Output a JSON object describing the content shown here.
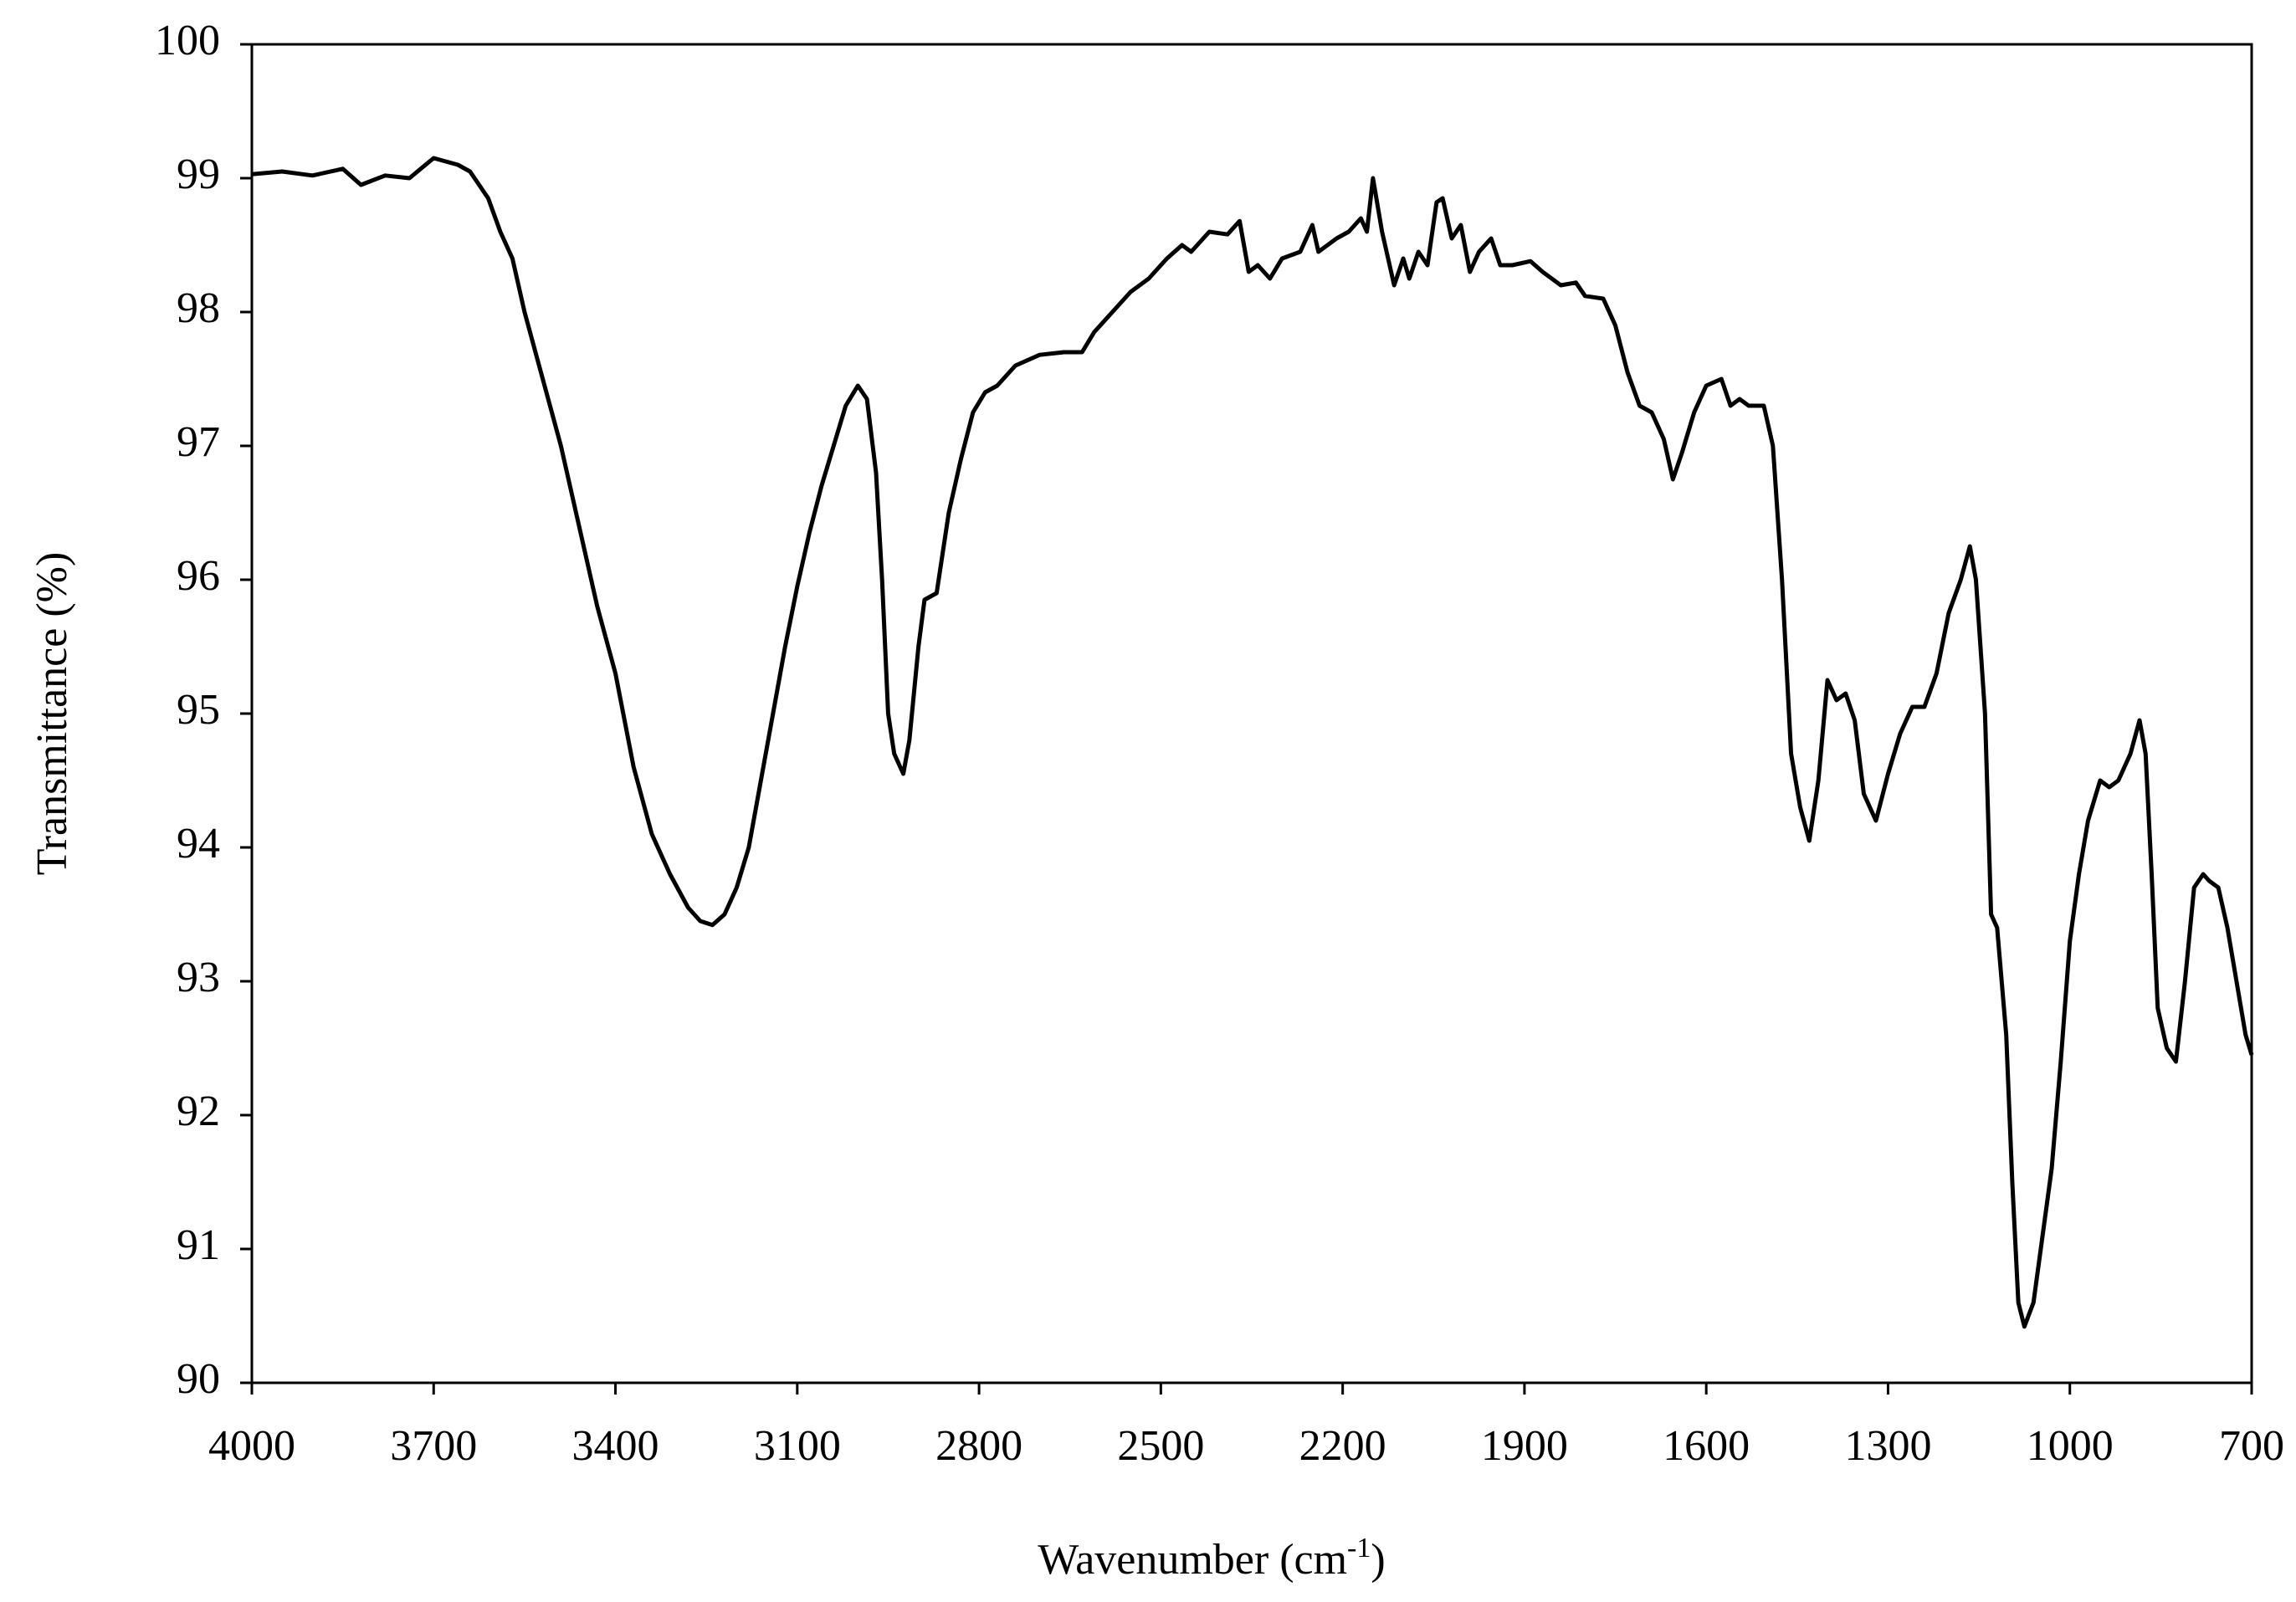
{
  "chart_data": {
    "type": "line",
    "ylabel": "Transmittance (%)",
    "xlabel": [
      "Wavenumber (cm",
      "-1",
      ")"
    ],
    "color": "#000000",
    "xlim": [
      4000,
      700
    ],
    "xticks": [
      4000,
      3700,
      3400,
      3100,
      2800,
      2500,
      2200,
      1900,
      1600,
      1300,
      1000,
      700
    ],
    "ylim": [
      90,
      100
    ],
    "yticks": [
      90,
      91,
      92,
      93,
      94,
      95,
      96,
      97,
      98,
      99,
      100
    ],
    "grid": false,
    "x": [
      4000,
      3950,
      3900,
      3850,
      3820,
      3780,
      3740,
      3700,
      3660,
      3640,
      3610,
      3590,
      3570,
      3550,
      3520,
      3490,
      3460,
      3430,
      3400,
      3370,
      3340,
      3310,
      3280,
      3260,
      3240,
      3220,
      3200,
      3180,
      3160,
      3140,
      3120,
      3100,
      3080,
      3060,
      3040,
      3020,
      3000,
      2985,
      2970,
      2960,
      2950,
      2940,
      2925,
      2915,
      2900,
      2890,
      2870,
      2850,
      2830,
      2810,
      2790,
      2770,
      2740,
      2700,
      2660,
      2630,
      2610,
      2580,
      2550,
      2520,
      2490,
      2465,
      2450,
      2420,
      2390,
      2370,
      2355,
      2340,
      2320,
      2300,
      2270,
      2250,
      2240,
      2210,
      2190,
      2170,
      2160,
      2150,
      2135,
      2115,
      2100,
      2090,
      2075,
      2060,
      2045,
      2035,
      2020,
      2005,
      1990,
      1975,
      1955,
      1940,
      1920,
      1890,
      1870,
      1840,
      1815,
      1800,
      1770,
      1750,
      1730,
      1710,
      1690,
      1670,
      1655,
      1640,
      1620,
      1600,
      1575,
      1560,
      1545,
      1530,
      1505,
      1490,
      1475,
      1460,
      1445,
      1430,
      1415,
      1400,
      1385,
      1370,
      1355,
      1340,
      1320,
      1300,
      1280,
      1260,
      1240,
      1220,
      1200,
      1180,
      1165,
      1155,
      1140,
      1130,
      1120,
      1105,
      1095,
      1085,
      1075,
      1060,
      1045,
      1030,
      1015,
      1000,
      985,
      970,
      950,
      935,
      920,
      900,
      885,
      875,
      865,
      855,
      840,
      825,
      810,
      795,
      780,
      770,
      755,
      740,
      725,
      710,
      700
    ],
    "values": [
      99.03,
      99.05,
      99.02,
      99.07,
      98.95,
      99.02,
      99.0,
      99.15,
      99.1,
      99.05,
      98.85,
      98.6,
      98.4,
      98.0,
      97.5,
      97.0,
      96.4,
      95.8,
      95.3,
      94.6,
      94.1,
      93.8,
      93.55,
      93.45,
      93.42,
      93.5,
      93.7,
      94.0,
      94.5,
      95.0,
      95.5,
      95.95,
      96.35,
      96.7,
      97.0,
      97.3,
      97.45,
      97.35,
      96.8,
      96.0,
      95.0,
      94.7,
      94.55,
      94.8,
      95.5,
      95.85,
      95.9,
      96.5,
      96.9,
      97.25,
      97.4,
      97.45,
      97.6,
      97.68,
      97.7,
      97.7,
      97.85,
      98.0,
      98.15,
      98.25,
      98.4,
      98.5,
      98.45,
      98.6,
      98.58,
      98.68,
      98.3,
      98.35,
      98.25,
      98.4,
      98.45,
      98.65,
      98.45,
      98.55,
      98.6,
      98.7,
      98.6,
      99.0,
      98.6,
      98.2,
      98.4,
      98.25,
      98.45,
      98.35,
      98.82,
      98.85,
      98.55,
      98.65,
      98.3,
      98.45,
      98.55,
      98.35,
      98.35,
      98.38,
      98.3,
      98.2,
      98.22,
      98.12,
      98.1,
      97.9,
      97.55,
      97.3,
      97.25,
      97.05,
      96.75,
      96.95,
      97.25,
      97.45,
      97.5,
      97.3,
      97.35,
      97.3,
      97.3,
      97.0,
      96.0,
      94.7,
      94.3,
      94.05,
      94.5,
      95.25,
      95.1,
      95.15,
      94.95,
      94.4,
      94.2,
      94.55,
      94.85,
      95.05,
      95.05,
      95.3,
      95.75,
      96.0,
      96.25,
      96.0,
      95.0,
      93.5,
      93.4,
      92.6,
      91.5,
      90.6,
      90.42,
      90.6,
      91.1,
      91.6,
      92.4,
      93.3,
      93.8,
      94.2,
      94.5,
      94.45,
      94.5,
      94.7,
      94.95,
      94.7,
      93.8,
      92.8,
      92.5,
      92.4,
      93.0,
      93.7,
      93.8,
      93.75,
      93.7,
      93.4,
      93.0,
      92.6,
      92.45
    ]
  }
}
